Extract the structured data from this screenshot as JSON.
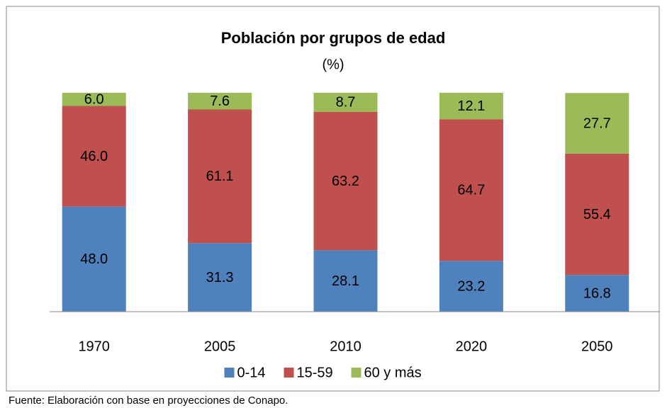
{
  "chart_data": {
    "type": "stacked_bar",
    "title": "Población por grupos de edad",
    "subtitle": "(%)",
    "note": "Fuente: Elaboración con base en proyecciones de Conapo.",
    "categories": [
      "1970",
      "2005",
      "2010",
      "2020",
      "2050"
    ],
    "series": [
      {
        "name": "0-14",
        "color": "#4f81bd",
        "values": [
          48,
          31.3,
          28.1,
          23.2,
          16.8
        ],
        "value_labels": [
          "48.0",
          "31.3",
          "28.1",
          "23.2",
          "16.8"
        ]
      },
      {
        "name": "15-59",
        "color": "#c0504d",
        "values": [
          46,
          61.1,
          63.2,
          64.7,
          55.4
        ],
        "value_labels": [
          "46.0",
          "61.1",
          "63.2",
          "64.7",
          "55.4"
        ]
      },
      {
        "name": "60 y más",
        "color": "#9bbb59",
        "values": [
          6,
          7.6,
          8.7,
          12.1,
          27.7
        ],
        "value_labels": [
          "6.0",
          "7.6",
          "8.7",
          "12.1",
          "27.7"
        ]
      }
    ],
    "ylim": [
      0,
      100
    ],
    "legend": "bottom"
  }
}
